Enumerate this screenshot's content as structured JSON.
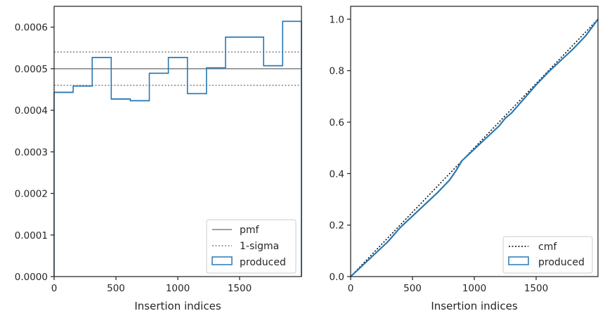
{
  "colors": {
    "produced": "#2878b5",
    "pmf": "#808080",
    "sigma": "#808080",
    "cmf": "#000000",
    "axis": "#262626"
  },
  "chart_data": [
    {
      "type": "histogram",
      "xlabel": "Insertion indices",
      "ylabel": "",
      "xlim": [
        0,
        2000
      ],
      "ylim": [
        0,
        0.00065
      ],
      "xticks": [
        0,
        500,
        1000,
        1500
      ],
      "yticks": [
        0,
        0.0001,
        0.0002,
        0.0003,
        0.0004,
        0.0005,
        0.0006
      ],
      "ytick_labels": [
        "0.0000",
        "0.0001",
        "0.0002",
        "0.0003",
        "0.0004",
        "0.0005",
        "0.0006"
      ],
      "grid": false,
      "legend_position": "lower-right",
      "pmf": 0.0005,
      "sigma": [
        0.00046,
        0.00054
      ],
      "bin_edges": [
        0,
        154,
        308,
        462,
        616,
        770,
        924,
        1078,
        1232,
        1386,
        1694,
        1848,
        2000
      ],
      "values": [
        0.000443,
        0.000458,
        0.000527,
        0.000427,
        0.000423,
        0.000489,
        0.000527,
        0.00044,
        0.000502,
        0.000576,
        0.000507,
        0.000614
      ],
      "legend": [
        "pmf",
        "1-sigma",
        "produced"
      ]
    },
    {
      "type": "line",
      "xlabel": "Insertion indices",
      "ylabel": "",
      "xlim": [
        0,
        2000
      ],
      "ylim": [
        0,
        1.05
      ],
      "xticks": [
        0,
        500,
        1000,
        1500
      ],
      "yticks": [
        0,
        0.2,
        0.4,
        0.6,
        0.8,
        1.0
      ],
      "ytick_labels": [
        "0.0",
        "0.2",
        "0.4",
        "0.6",
        "0.8",
        "1.0"
      ],
      "grid": false,
      "legend_position": "lower-right",
      "cmf": {
        "x": [
          0,
          2000
        ],
        "y": [
          0,
          1.0
        ]
      },
      "produced": {
        "x": [
          0,
          100,
          200,
          300,
          400,
          500,
          600,
          700,
          800,
          850,
          900,
          1000,
          1100,
          1200,
          1250,
          1300,
          1400,
          1500,
          1600,
          1700,
          1800,
          1900,
          2000
        ],
        "y": [
          0,
          0.045,
          0.09,
          0.135,
          0.19,
          0.235,
          0.28,
          0.325,
          0.375,
          0.41,
          0.45,
          0.495,
          0.54,
          0.585,
          0.615,
          0.635,
          0.69,
          0.745,
          0.795,
          0.84,
          0.885,
          0.935,
          1.0
        ]
      },
      "legend": [
        "cmf",
        "produced"
      ]
    }
  ]
}
